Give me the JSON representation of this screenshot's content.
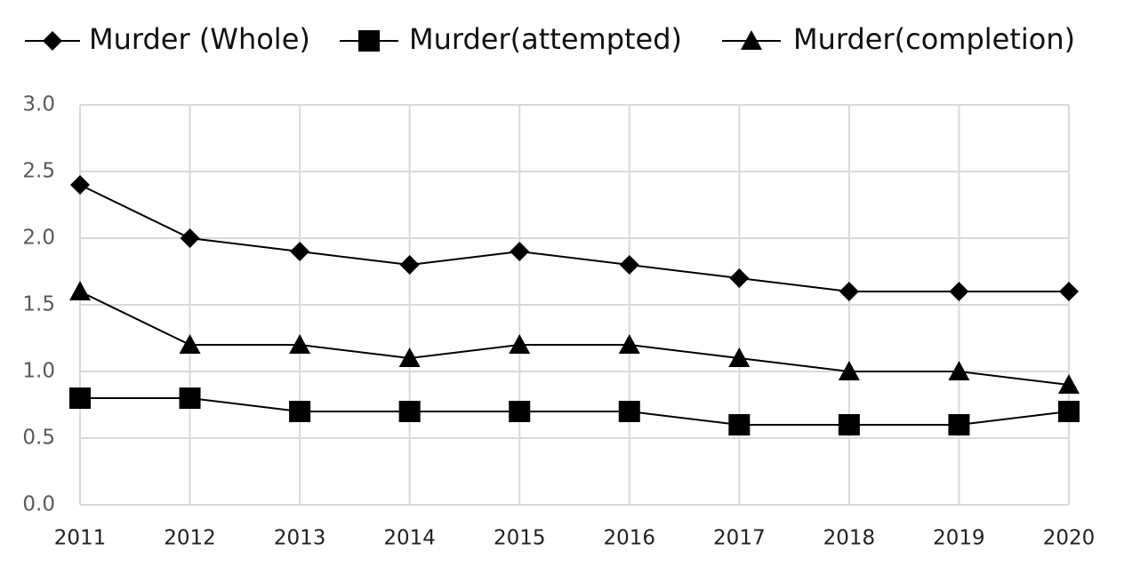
{
  "chart_data": {
    "type": "line",
    "categories": [
      "2011",
      "2012",
      "2013",
      "2014",
      "2015",
      "2016",
      "2017",
      "2018",
      "2019",
      "2020"
    ],
    "series": [
      {
        "name": "Murder (Whole)",
        "color": "#000000",
        "marker": "diamond",
        "values": [
          2.4,
          2.0,
          1.9,
          1.8,
          1.9,
          1.8,
          1.7,
          1.6,
          1.6,
          1.6
        ]
      },
      {
        "name": "Murder(attempted)",
        "color": "#000000",
        "marker": "square",
        "values": [
          0.8,
          0.8,
          0.7,
          0.7,
          0.7,
          0.7,
          0.6,
          0.6,
          0.6,
          0.7
        ]
      },
      {
        "name": "Murder(completion)",
        "color": "#000000",
        "marker": "triangle",
        "values": [
          1.6,
          1.2,
          1.2,
          1.1,
          1.2,
          1.2,
          1.1,
          1.0,
          1.0,
          0.9
        ]
      }
    ],
    "ylim": [
      0,
      3
    ],
    "yticks": [
      {
        "value": 0,
        "label": "0.0"
      },
      0.5,
      {
        "value": 1,
        "label": "1.0"
      },
      1.5,
      {
        "value": 2,
        "label": "2.0"
      },
      2.5,
      {
        "value": 3,
        "label": "3.0"
      }
    ],
    "grid": true,
    "legend": "top"
  }
}
